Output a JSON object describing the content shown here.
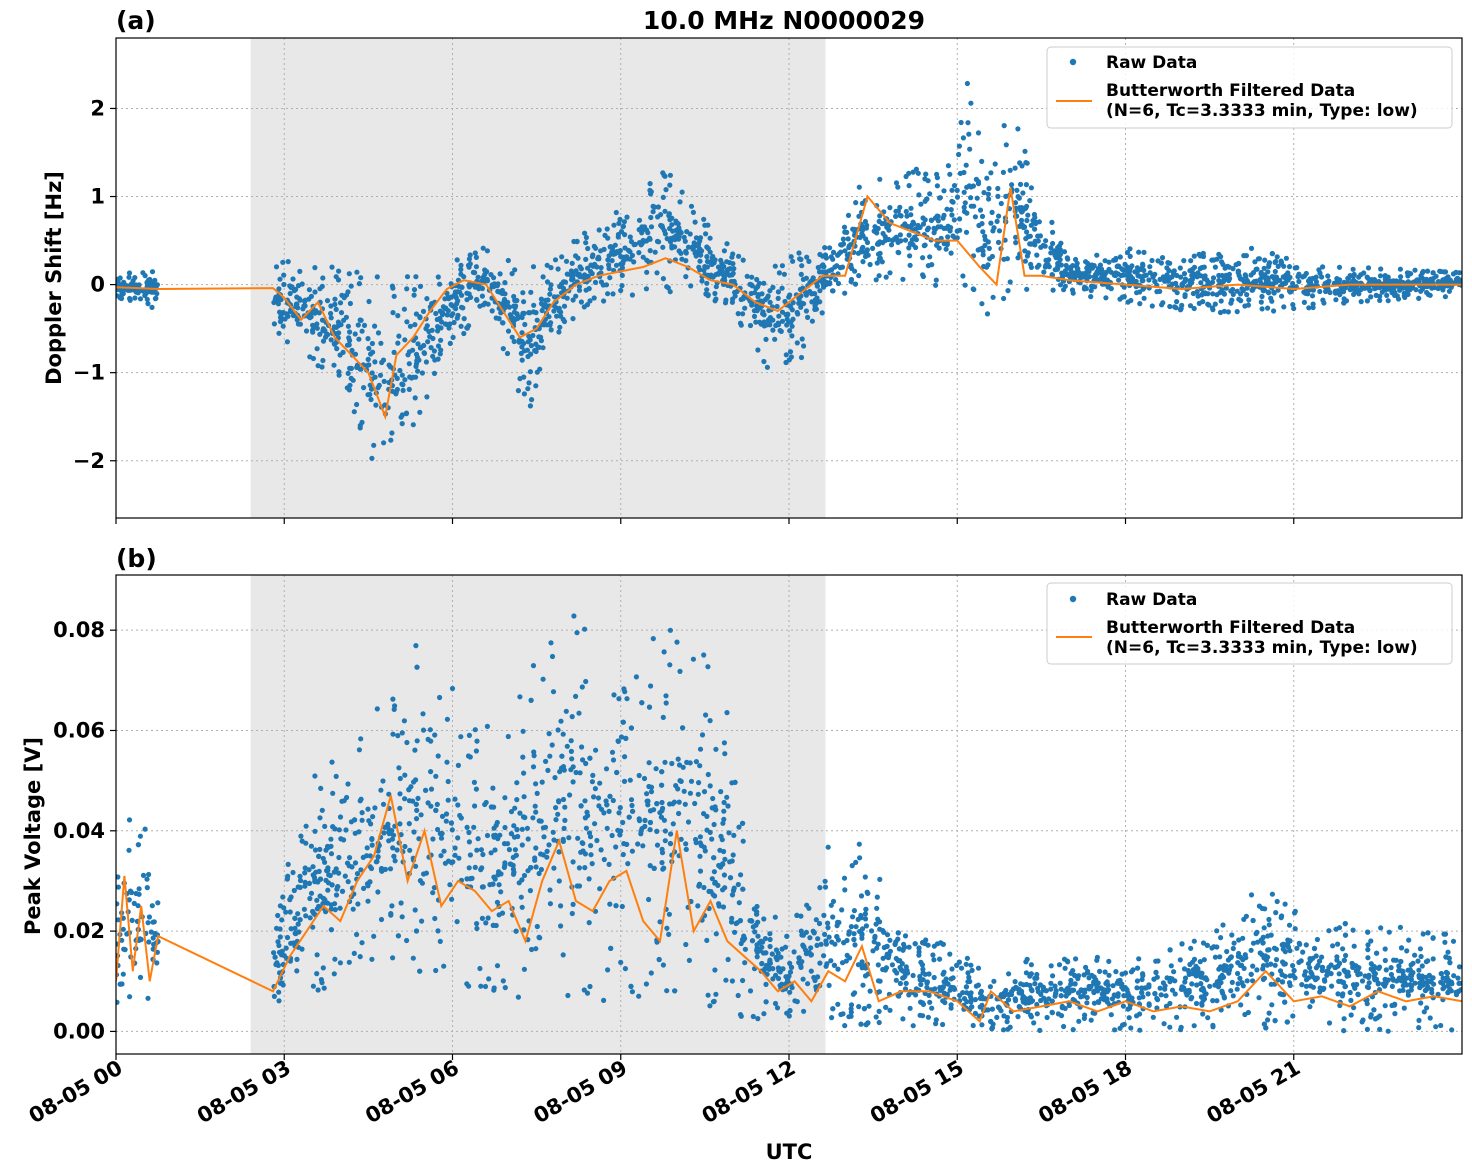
{
  "figure": {
    "title": "10.0 MHz N0000029",
    "xlabel": "UTC"
  },
  "colors": {
    "raw": "#1f77b4",
    "filtered": "#ff7f0e",
    "shade": "#e8e8e8",
    "grid": "#b0b0b0"
  },
  "chart_data": [
    {
      "type": "scatter",
      "panel_label": "(a)",
      "title": "10.0 MHz N0000029",
      "xlabel": "",
      "ylabel": "Doppler Shift [Hz]",
      "xlim": [
        0,
        24
      ],
      "ylim": [
        -2.65,
        2.8
      ],
      "x_unit": "hours since 08-05 00 UTC",
      "x_ticks": [
        0,
        3,
        6,
        9,
        12,
        15,
        18,
        21
      ],
      "x_tick_labels": [
        "08-05 00",
        "08-05 03",
        "08-05 06",
        "08-05 09",
        "08-05 12",
        "08-05 15",
        "08-05 18",
        "08-05 21"
      ],
      "y_ticks": [
        -2,
        -1,
        0,
        1,
        2
      ],
      "y_tick_labels": [
        "−2",
        "−1",
        "0",
        "1",
        "2"
      ],
      "grid": true,
      "legend_position": "top-right",
      "shaded_region": [
        2.4,
        12.65
      ],
      "series": [
        {
          "name": "Raw Data",
          "kind": "scatter",
          "envelope": [
            {
              "x": 0.0,
              "low": -0.15,
              "high": 0.1
            },
            {
              "x": 0.75,
              "low": -0.3,
              "high": 0.2
            },
            {
              "x": 2.8,
              "low": -0.6,
              "high": 0.35
            },
            {
              "x": 3.3,
              "low": -0.75,
              "high": 0.2
            },
            {
              "x": 3.8,
              "low": -1.1,
              "high": 0.2
            },
            {
              "x": 4.2,
              "low": -1.6,
              "high": 0.2
            },
            {
              "x": 4.8,
              "low": -2.4,
              "high": 0.15
            },
            {
              "x": 5.3,
              "low": -1.7,
              "high": 0.1
            },
            {
              "x": 5.8,
              "low": -0.9,
              "high": 0.2
            },
            {
              "x": 6.5,
              "low": -0.3,
              "high": 0.45
            },
            {
              "x": 7.0,
              "low": -0.9,
              "high": 0.3
            },
            {
              "x": 7.4,
              "low": -1.6,
              "high": 0.25
            },
            {
              "x": 7.8,
              "low": -0.6,
              "high": 0.3
            },
            {
              "x": 8.5,
              "low": -0.2,
              "high": 0.7
            },
            {
              "x": 9.0,
              "low": -0.2,
              "high": 0.9
            },
            {
              "x": 9.8,
              "low": -0.1,
              "high": 1.35
            },
            {
              "x": 10.3,
              "low": -0.1,
              "high": 0.9
            },
            {
              "x": 11.0,
              "low": -0.3,
              "high": 0.4
            },
            {
              "x": 11.6,
              "low": -1.0,
              "high": 0.25
            },
            {
              "x": 12.2,
              "low": -0.9,
              "high": 0.4
            },
            {
              "x": 12.7,
              "low": -0.2,
              "high": 0.5
            },
            {
              "x": 13.3,
              "low": 0.0,
              "high": 1.2
            },
            {
              "x": 14.0,
              "low": -0.05,
              "high": 1.35
            },
            {
              "x": 14.8,
              "low": -0.05,
              "high": 1.3
            },
            {
              "x": 15.2,
              "low": -0.05,
              "high": 2.55
            },
            {
              "x": 15.5,
              "low": -0.5,
              "high": 1.4
            },
            {
              "x": 15.95,
              "low": -0.1,
              "high": 2.1
            },
            {
              "x": 16.4,
              "low": -0.05,
              "high": 1.1
            },
            {
              "x": 17.0,
              "low": -0.1,
              "high": 0.3
            },
            {
              "x": 18.0,
              "low": -0.2,
              "high": 0.45
            },
            {
              "x": 19.0,
              "low": -0.3,
              "high": 0.3
            },
            {
              "x": 20.0,
              "low": -0.35,
              "high": 0.45
            },
            {
              "x": 21.0,
              "low": -0.3,
              "high": 0.3
            },
            {
              "x": 22.0,
              "low": -0.2,
              "high": 0.2
            },
            {
              "x": 24.0,
              "low": -0.15,
              "high": 0.15
            }
          ],
          "gap": [
            0.75,
            2.8
          ]
        },
        {
          "name": "Butterworth Filtered Data\n(N=6, Tc=3.3333 min, Type: low)",
          "kind": "line",
          "x": [
            0,
            0.75,
            2.8,
            3.0,
            3.3,
            3.6,
            3.9,
            4.2,
            4.5,
            4.8,
            5.0,
            5.3,
            5.6,
            5.9,
            6.2,
            6.6,
            6.9,
            7.2,
            7.5,
            7.8,
            8.2,
            8.6,
            9.0,
            9.4,
            9.8,
            10.2,
            10.6,
            11.0,
            11.4,
            11.8,
            12.2,
            12.6,
            13.0,
            13.4,
            13.8,
            14.2,
            14.6,
            15.0,
            15.4,
            15.7,
            15.95,
            16.2,
            16.5,
            17.0,
            18.0,
            19.0,
            20.0,
            21.0,
            22.0,
            23.0,
            24.0
          ],
          "y": [
            -0.03,
            -0.05,
            -0.04,
            -0.15,
            -0.4,
            -0.2,
            -0.6,
            -0.8,
            -1.0,
            -1.5,
            -0.8,
            -0.6,
            -0.3,
            -0.05,
            0.05,
            0.0,
            -0.3,
            -0.6,
            -0.5,
            -0.2,
            0.0,
            0.1,
            0.15,
            0.2,
            0.3,
            0.2,
            0.05,
            0.0,
            -0.2,
            -0.3,
            -0.1,
            0.1,
            0.1,
            1.0,
            0.7,
            0.6,
            0.5,
            0.5,
            0.2,
            0.0,
            1.1,
            0.1,
            0.1,
            0.05,
            0.0,
            -0.05,
            0.0,
            -0.05,
            0.0,
            0.0,
            0.0
          ]
        }
      ]
    },
    {
      "type": "scatter",
      "panel_label": "(b)",
      "xlabel": "UTC",
      "ylabel": "Peak Voltage [V]",
      "xlim": [
        0,
        24
      ],
      "ylim": [
        -0.0045,
        0.091
      ],
      "x_unit": "hours since 08-05 00 UTC",
      "x_ticks": [
        0,
        3,
        6,
        9,
        12,
        15,
        18,
        21
      ],
      "x_tick_labels": [
        "08-05 00",
        "08-05 03",
        "08-05 06",
        "08-05 09",
        "08-05 12",
        "08-05 15",
        "08-05 18",
        "08-05 21"
      ],
      "y_ticks": [
        0.0,
        0.02,
        0.04,
        0.06,
        0.08
      ],
      "y_tick_labels": [
        "0.00",
        "0.02",
        "0.04",
        "0.06",
        "0.08"
      ],
      "grid": true,
      "legend_position": "top-right",
      "shaded_region": [
        2.4,
        12.65
      ],
      "series": [
        {
          "name": "Raw Data",
          "kind": "scatter",
          "envelope": [
            {
              "x": 0.0,
              "low": 0.002,
              "high": 0.036
            },
            {
              "x": 0.5,
              "low": 0.002,
              "high": 0.049
            },
            {
              "x": 0.75,
              "low": 0.002,
              "high": 0.03
            },
            {
              "x": 2.8,
              "low": 0.004,
              "high": 0.02
            },
            {
              "x": 3.4,
              "low": 0.006,
              "high": 0.05
            },
            {
              "x": 4.0,
              "low": 0.008,
              "high": 0.055
            },
            {
              "x": 4.6,
              "low": 0.012,
              "high": 0.065
            },
            {
              "x": 5.6,
              "low": 0.01,
              "high": 0.082
            },
            {
              "x": 6.3,
              "low": 0.008,
              "high": 0.065
            },
            {
              "x": 7.0,
              "low": 0.007,
              "high": 0.06
            },
            {
              "x": 7.8,
              "low": 0.006,
              "high": 0.087
            },
            {
              "x": 8.8,
              "low": 0.005,
              "high": 0.08
            },
            {
              "x": 9.5,
              "low": 0.004,
              "high": 0.078
            },
            {
              "x": 10.1,
              "low": 0.004,
              "high": 0.084
            },
            {
              "x": 10.8,
              "low": 0.003,
              "high": 0.072
            },
            {
              "x": 11.3,
              "low": 0.002,
              "high": 0.032
            },
            {
              "x": 12.0,
              "low": 0.002,
              "high": 0.02
            },
            {
              "x": 12.7,
              "low": 0.001,
              "high": 0.037
            },
            {
              "x": 13.4,
              "low": 0.001,
              "high": 0.039
            },
            {
              "x": 14.0,
              "low": 0.001,
              "high": 0.02
            },
            {
              "x": 15.0,
              "low": 0.001,
              "high": 0.018
            },
            {
              "x": 15.5,
              "low": 0.0,
              "high": 0.012
            },
            {
              "x": 16.5,
              "low": 0.0,
              "high": 0.016
            },
            {
              "x": 18.0,
              "low": 0.0,
              "high": 0.015
            },
            {
              "x": 19.5,
              "low": 0.0,
              "high": 0.019
            },
            {
              "x": 20.4,
              "low": 0.0,
              "high": 0.029
            },
            {
              "x": 21.5,
              "low": 0.0,
              "high": 0.022
            },
            {
              "x": 24.0,
              "low": 0.0,
              "high": 0.02
            }
          ],
          "gap": [
            0.75,
            2.8
          ]
        },
        {
          "name": "Butterworth Filtered Data\n(N=6, Tc=3.3333 min, Type: low)",
          "kind": "line",
          "x": [
            0,
            0.15,
            0.3,
            0.45,
            0.6,
            0.75,
            2.8,
            3.1,
            3.4,
            3.7,
            4.0,
            4.3,
            4.6,
            4.9,
            5.2,
            5.5,
            5.8,
            6.1,
            6.4,
            6.7,
            7.0,
            7.3,
            7.6,
            7.9,
            8.2,
            8.5,
            8.8,
            9.1,
            9.4,
            9.7,
            10.0,
            10.3,
            10.6,
            10.9,
            11.2,
            11.5,
            11.8,
            12.1,
            12.4,
            12.7,
            13.0,
            13.3,
            13.6,
            14.0,
            14.5,
            15.0,
            15.4,
            15.6,
            16.0,
            16.5,
            17.0,
            17.5,
            18.0,
            18.5,
            19.0,
            19.5,
            20.0,
            20.5,
            21.0,
            21.5,
            22.0,
            22.5,
            23.0,
            23.5,
            24.0
          ],
          "y": [
            0.01,
            0.031,
            0.012,
            0.025,
            0.01,
            0.019,
            0.008,
            0.015,
            0.02,
            0.025,
            0.022,
            0.03,
            0.035,
            0.047,
            0.03,
            0.04,
            0.025,
            0.03,
            0.028,
            0.024,
            0.026,
            0.018,
            0.03,
            0.038,
            0.026,
            0.024,
            0.03,
            0.032,
            0.022,
            0.018,
            0.04,
            0.02,
            0.026,
            0.018,
            0.015,
            0.012,
            0.008,
            0.01,
            0.006,
            0.012,
            0.01,
            0.017,
            0.006,
            0.008,
            0.008,
            0.006,
            0.002,
            0.008,
            0.004,
            0.005,
            0.006,
            0.004,
            0.006,
            0.004,
            0.005,
            0.004,
            0.006,
            0.012,
            0.006,
            0.007,
            0.005,
            0.008,
            0.006,
            0.007,
            0.006
          ]
        }
      ]
    }
  ]
}
